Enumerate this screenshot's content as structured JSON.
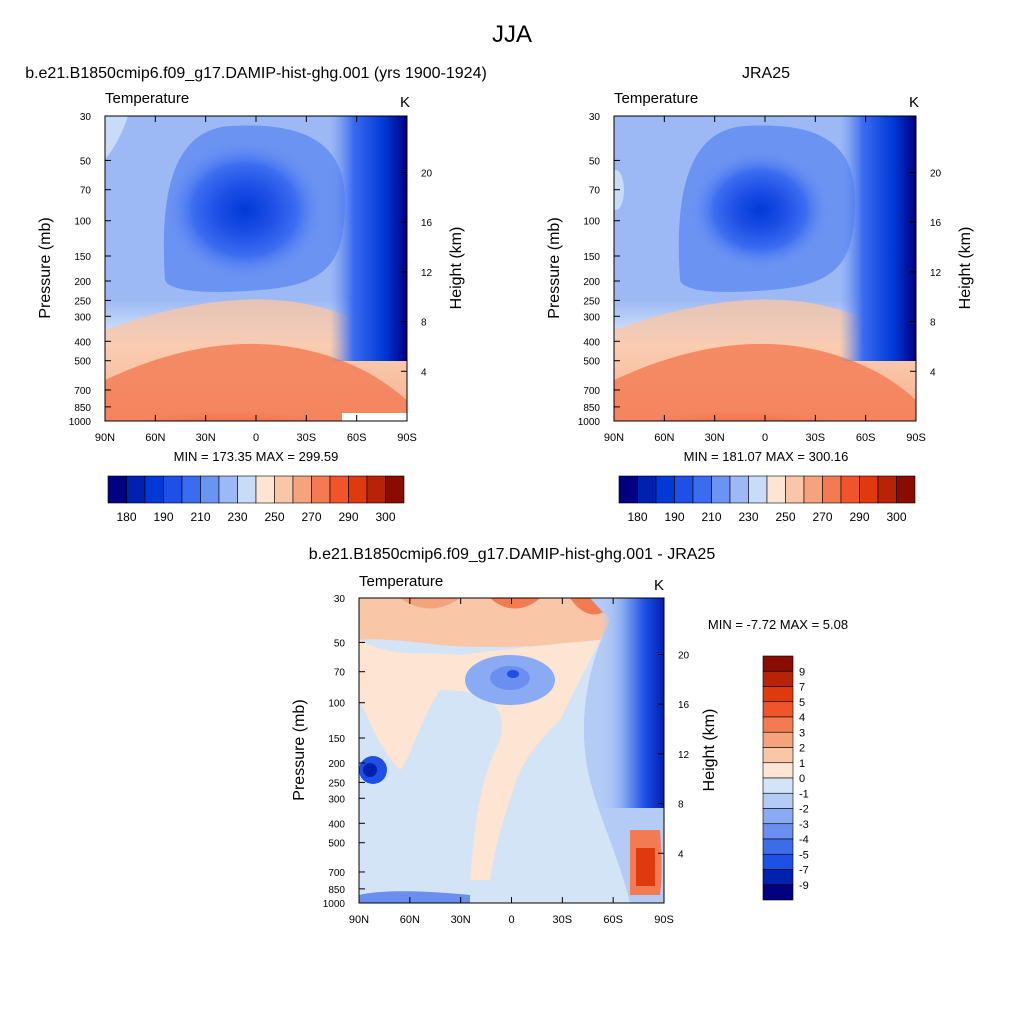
{
  "page_title": "JJA",
  "panels": [
    {
      "id": "model",
      "title": "b.e21.B1850cmip6.f09_g17.DAMIP-hist-ghg.001 (yrs 1900-1924)",
      "left_label": "Temperature",
      "right_label": "K",
      "stats": "MIN = 173.35  MAX = 299.59"
    },
    {
      "id": "obs",
      "title": "JRA25",
      "left_label": "Temperature",
      "right_label": "K",
      "stats": "MIN = 181.07  MAX = 300.16"
    },
    {
      "id": "diff",
      "title": "b.e21.B1850cmip6.f09_g17.DAMIP-hist-ghg.001 - JRA25",
      "left_label": "Temperature",
      "right_label": "K",
      "stats": "MIN =  -7.72  MAX =   5.08"
    }
  ],
  "chart_data": [
    {
      "type": "contour",
      "panel": "model",
      "xlabel": "",
      "ylabel": "Pressure (mb)",
      "y2label": "Height (km)",
      "x_ticks": [
        "90N",
        "60N",
        "30N",
        "0",
        "30S",
        "60S",
        "90S"
      ],
      "y_ticks": [
        "30",
        "50",
        "70",
        "100",
        "150",
        "200",
        "250",
        "300",
        "400",
        "500",
        "700",
        "850",
        "1000"
      ],
      "y2_ticks": [
        "20",
        "16",
        "12",
        "8",
        "4"
      ],
      "ylim": [
        1000,
        30
      ],
      "levels": [
        180,
        185,
        190,
        200,
        210,
        220,
        230,
        240,
        250,
        260,
        270,
        280,
        285,
        290,
        295,
        300
      ],
      "colorbar_labels": [
        "180",
        "190",
        "210",
        "230",
        "250",
        "270",
        "290",
        "300"
      ],
      "colors": [
        "#000080",
        "#0020b0",
        "#0039d6",
        "#1e4fe6",
        "#3b6cf0",
        "#6b93f2",
        "#9cb8f5",
        "#c9dcf7",
        "#fde4d3",
        "#f9c6a8",
        "#f5a37d",
        "#f27b52",
        "#f0542b",
        "#df3a0d",
        "#b82206",
        "#8a0b00"
      ]
    },
    {
      "type": "contour",
      "panel": "obs",
      "ylabel": "Pressure (mb)",
      "y2label": "Height (km)",
      "x_ticks": [
        "90N",
        "60N",
        "30N",
        "0",
        "30S",
        "60S",
        "90S"
      ],
      "y_ticks": [
        "30",
        "50",
        "70",
        "100",
        "150",
        "200",
        "250",
        "300",
        "400",
        "500",
        "700",
        "850",
        "1000"
      ],
      "y2_ticks": [
        "20",
        "16",
        "12",
        "8",
        "4"
      ],
      "ylim": [
        1000,
        30
      ],
      "colorbar_labels": [
        "180",
        "190",
        "210",
        "230",
        "250",
        "270",
        "290",
        "300"
      ]
    },
    {
      "type": "contour",
      "panel": "diff",
      "ylabel": "Pressure (mb)",
      "y2label": "Height (km)",
      "x_ticks": [
        "90N",
        "60N",
        "30N",
        "0",
        "30S",
        "60S",
        "90S"
      ],
      "y_ticks": [
        "30",
        "50",
        "70",
        "100",
        "150",
        "200",
        "250",
        "300",
        "400",
        "500",
        "700",
        "850",
        "1000"
      ],
      "y2_ticks": [
        "20",
        "16",
        "12",
        "8",
        "4"
      ],
      "ylim": [
        1000,
        30
      ],
      "levels": [
        9,
        7,
        5,
        4,
        3,
        2,
        1,
        0,
        -1,
        -2,
        -3,
        -4,
        -5,
        -7,
        -9
      ],
      "colorbar_labels": [
        "9",
        "7",
        "5",
        "4",
        "3",
        "2",
        "1",
        "0",
        "-1",
        "-2",
        "-3",
        "-4",
        "-5",
        "-7",
        "-9"
      ],
      "colors": [
        "#8a0b00",
        "#b82206",
        "#df3a0d",
        "#f0542b",
        "#f27b52",
        "#f5a37d",
        "#f9c6a8",
        "#fde4d3",
        "#d4e4f7",
        "#b3cbf5",
        "#8aabf3",
        "#6b8ff0",
        "#3d6ce8",
        "#1e4fe6",
        "#0020b0",
        "#000080"
      ]
    }
  ]
}
